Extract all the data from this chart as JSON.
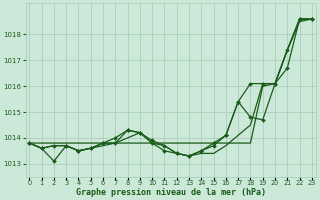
{
  "title": "Graphe pression niveau de la mer (hPa)",
  "background_color": "#cce8d8",
  "grid_color": "#aacfba",
  "line_color": "#1a5c1a",
  "ylim": [
    1012.5,
    1019.2
  ],
  "yticks": [
    1013,
    1014,
    1015,
    1016,
    1017,
    1018
  ],
  "xlim": [
    -0.3,
    23.3
  ],
  "xticks": [
    0,
    1,
    2,
    3,
    4,
    5,
    6,
    7,
    8,
    9,
    10,
    11,
    12,
    13,
    14,
    15,
    16,
    17,
    18,
    19,
    20,
    21,
    22,
    23
  ],
  "smooth_line": [
    1013.8,
    1013.8,
    1013.8,
    1013.8,
    1013.8,
    1013.8,
    1013.8,
    1013.8,
    1013.8,
    1013.8,
    1013.8,
    1013.8,
    1013.8,
    1013.8,
    1013.8,
    1013.8,
    1013.8,
    1013.8,
    1013.8,
    1016.0,
    1016.1,
    1017.4,
    1018.6,
    1018.6
  ],
  "series_with_markers": [
    [
      1013.8,
      1013.6,
      1013.1,
      1013.7,
      1013.5,
      1013.6,
      1013.8,
      1013.8,
      1014.3,
      1014.2,
      1013.8,
      1013.5,
      1013.4,
      1013.3,
      1013.5,
      1013.7,
      1014.1,
      1015.4,
      1014.8,
      1014.7,
      1016.1,
      1016.7,
      1018.6,
      1018.6
    ],
    [
      1013.8,
      1013.6,
      1013.7,
      1013.7,
      1013.5,
      1013.6,
      1013.8,
      1014.0,
      1014.3,
      1014.2,
      1013.9,
      1013.7,
      1013.4,
      1013.3,
      1013.5,
      1013.8,
      1014.1,
      1015.4,
      1016.1,
      1016.1,
      1016.1,
      1017.4,
      1018.6,
      1018.6
    ]
  ],
  "smooth_line2": [
    1013.8,
    1013.6,
    1013.7,
    1013.7,
    1013.5,
    1013.6,
    1013.7,
    1013.8,
    1014.0,
    1014.2,
    1013.8,
    1013.7,
    1013.4,
    1013.3,
    1013.4,
    1013.4,
    1013.7,
    1014.1,
    1014.5,
    1016.1,
    1016.1,
    1017.4,
    1018.5,
    1018.6
  ],
  "marker": "D",
  "marker_size": 2.0,
  "line_width": 0.9,
  "tick_fontsize": 5.0,
  "xlabel_fontsize": 6.0
}
